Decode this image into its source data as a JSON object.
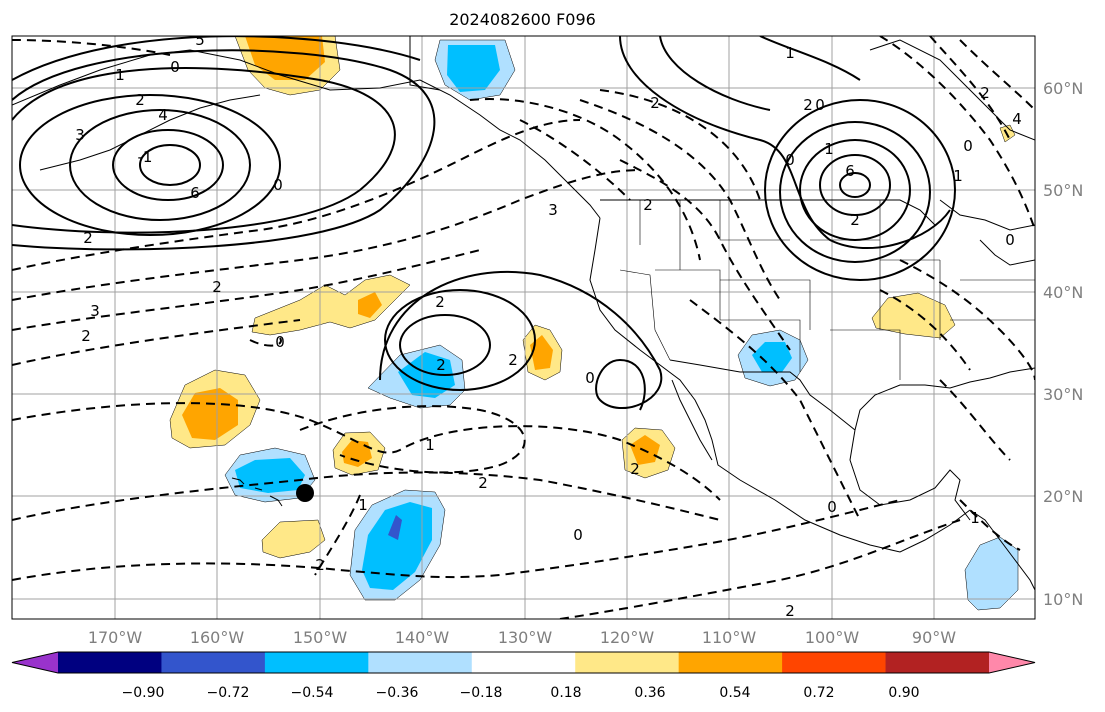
{
  "title": "2024082600 F096",
  "map": {
    "lon_labels": [
      "170°W",
      "160°W",
      "150°W",
      "140°W",
      "130°W",
      "120°W",
      "110°W",
      "100°W",
      "90°W"
    ],
    "lat_labels": [
      "60°N",
      "50°N",
      "40°N",
      "30°N",
      "20°N",
      "10°N"
    ],
    "gridline_color": "#a0a0a0",
    "land_outline_color": "#000000",
    "storm_marker": "filled-black-circle"
  },
  "contours": {
    "style_positive": "solid",
    "style_negative": "dashed",
    "labels": [
      "3",
      "2",
      "4",
      "1",
      "0",
      "5",
      "6",
      "-1",
      "2",
      "0",
      "2",
      "3",
      "2",
      "2",
      "1",
      "0",
      "2",
      "2",
      "1",
      "0",
      "6",
      "2",
      "3",
      "2",
      "4",
      "0",
      "1",
      "0",
      "2",
      "2",
      "2",
      "2",
      "1",
      "2",
      "0",
      "0",
      "1",
      "2",
      "0",
      "0",
      "1",
      "2"
    ]
  },
  "colorbar": {
    "ticks": [
      "−0.90",
      "−0.72",
      "−0.54",
      "−0.36",
      "−0.18",
      "0.18",
      "0.36",
      "0.54",
      "0.72",
      "0.90"
    ],
    "colors": [
      "#9933cc",
      "#000080",
      "#3355cc",
      "#00bfff",
      "#b0e0ff",
      "#ffffff",
      "#ffe888",
      "#ffa500",
      "#ff4500",
      "#b22222",
      "#ff88aa"
    ],
    "extend": "both"
  }
}
